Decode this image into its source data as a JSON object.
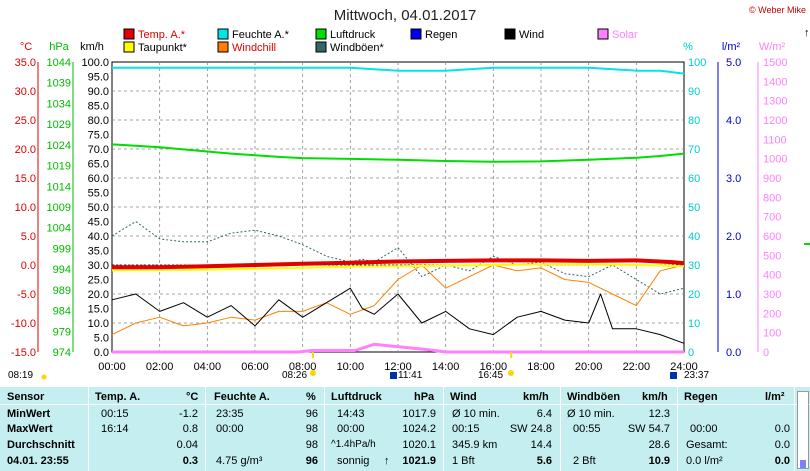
{
  "header": {
    "title": "Mittwoch, 04.01.2017",
    "credit": "© Weber Mike"
  },
  "legend": [
    {
      "label": "Temp. A.*",
      "color": "#e00000"
    },
    {
      "label": "Feuchte A.*",
      "color": "#00e6e6"
    },
    {
      "label": "Luftdruck",
      "color": "#00dd00"
    },
    {
      "label": "Regen",
      "color": "#0000ee"
    },
    {
      "label": "Wind",
      "color": "#000000"
    },
    {
      "label": "Solar",
      "color": "#ff80ff"
    },
    {
      "label": "Taupunkt*",
      "color": "#ffff00"
    },
    {
      "label": "Windchill",
      "color": "#ff8000"
    },
    {
      "label": "Windböen*",
      "color": "#336666"
    }
  ],
  "chart_data": {
    "type": "line",
    "x_ticks": [
      "00:00",
      "02:00",
      "04:00",
      "06:00",
      "08:00",
      "10:00",
      "12:00",
      "14:00",
      "16:00",
      "18:00",
      "20:00",
      "22:00",
      "24:00"
    ],
    "axes": {
      "temp": {
        "unit": "°C",
        "ticks": [
          "35.0",
          "30.0",
          "25.0",
          "20.0",
          "15.0",
          "10.0",
          "5.0",
          "0.0",
          "-5.0",
          "-10.0",
          "-15.0"
        ],
        "color": "#e00000"
      },
      "pressure": {
        "unit": "hPa",
        "ticks": [
          "1044",
          "1039",
          "1034",
          "1029",
          "1024",
          "1019",
          "1014",
          "1009",
          "1004",
          "999",
          "994",
          "989",
          "984",
          "979",
          "974"
        ],
        "color": "#00bb00"
      },
      "wind": {
        "unit": "km/h",
        "ticks": [
          "100.0",
          "95.0",
          "90.0",
          "85.0",
          "80.0",
          "75.0",
          "70.0",
          "65.0",
          "60.0",
          "55.0",
          "50.0",
          "45.0",
          "40.0",
          "35.0",
          "30.0",
          "25.0",
          "20.0",
          "15.0",
          "10.0",
          "5.0",
          "0.0"
        ],
        "color": "#000000"
      },
      "humidity": {
        "unit": "%",
        "ticks": [
          "100",
          "90",
          "80",
          "70",
          "60",
          "50",
          "40",
          "30",
          "20",
          "10",
          "0"
        ],
        "color": "#00cccc"
      },
      "rain": {
        "unit": "l/m²",
        "ticks": [
          "5.0",
          "4.0",
          "3.0",
          "2.0",
          "1.0",
          "0.0"
        ],
        "color": "#0000cc"
      },
      "solar": {
        "unit": "W/m²",
        "ticks": [
          "1500",
          "1400",
          "1300",
          "1200",
          "1100",
          "1000",
          "900",
          "800",
          "700",
          "600",
          "500",
          "400",
          "300",
          "200",
          "100",
          "0"
        ],
        "color": "#ff80ff"
      }
    },
    "series": [
      {
        "name": "Temp. A.*",
        "axis": "temp",
        "x": [
          0,
          2,
          4,
          6,
          8,
          10,
          12,
          14,
          16,
          18,
          20,
          22,
          23.5,
          24
        ],
        "y": [
          -0.4,
          -0.4,
          -0.2,
          0.0,
          0.2,
          0.4,
          0.6,
          0.7,
          0.8,
          0.8,
          0.7,
          0.8,
          0.5,
          0.3
        ]
      },
      {
        "name": "Feuchte A.*",
        "axis": "humidity",
        "x": [
          0,
          4,
          8,
          10,
          12,
          14,
          16,
          18,
          20,
          22,
          23,
          24
        ],
        "y": [
          98,
          98,
          98,
          98,
          97,
          97,
          98,
          98,
          98,
          97,
          97,
          96
        ]
      },
      {
        "name": "Luftdruck",
        "axis": "pressure",
        "x": [
          0,
          1,
          2,
          3,
          4,
          5,
          6,
          7,
          8,
          10,
          12,
          14,
          16,
          18,
          20,
          22,
          23,
          24
        ],
        "y": [
          1024.1,
          1023.8,
          1023.4,
          1022.9,
          1022.4,
          1021.9,
          1021.5,
          1021.1,
          1020.8,
          1020.6,
          1020.4,
          1020.1,
          1019.9,
          1020.0,
          1020.4,
          1020.9,
          1021.3,
          1021.9
        ]
      },
      {
        "name": "Taupunkt*",
        "axis": "temp",
        "x": [
          0,
          4,
          8,
          10,
          12,
          14,
          16,
          18,
          20,
          22,
          24
        ],
        "y": [
          -0.9,
          -0.8,
          -0.5,
          -0.3,
          -0.2,
          -0.1,
          0.0,
          0.1,
          0.1,
          0.0,
          -0.2
        ]
      },
      {
        "name": "Wind",
        "axis": "wind",
        "x": [
          0,
          1,
          2,
          3,
          4,
          5,
          6,
          7,
          8,
          9,
          10,
          10.5,
          11,
          12,
          13,
          14,
          15,
          16,
          17,
          18,
          19,
          20,
          20.5,
          21,
          22,
          23,
          24
        ],
        "y": [
          18,
          20,
          14,
          17,
          12,
          16,
          9,
          18,
          12,
          17,
          22,
          15,
          13,
          20,
          10,
          14,
          8,
          6,
          12,
          14,
          11,
          10,
          20,
          8,
          8,
          6,
          3
        ]
      },
      {
        "name": "Windchill",
        "axis": "wind",
        "x": [
          0,
          1,
          2,
          3,
          4,
          5,
          6,
          7,
          8,
          9,
          10,
          11,
          12,
          13,
          14,
          15,
          16,
          17,
          18,
          19,
          20,
          21,
          22,
          23,
          24
        ],
        "y": [
          6,
          10,
          12,
          9,
          10,
          12,
          11,
          14,
          14,
          17,
          13,
          16,
          25,
          30,
          22,
          26,
          30,
          28,
          29,
          25,
          24,
          20,
          16,
          28,
          30
        ]
      },
      {
        "name": "Windböen*",
        "axis": "wind",
        "x": [
          0,
          1,
          2,
          3,
          4,
          5,
          6,
          7,
          8,
          9,
          10,
          10.5,
          11,
          12,
          13,
          14,
          15,
          16,
          17,
          18,
          19,
          20,
          21,
          22,
          23,
          24
        ],
        "y": [
          40,
          45,
          39,
          38,
          38,
          41,
          42,
          40,
          37,
          33,
          31,
          32,
          31,
          36,
          26,
          30,
          28,
          33,
          30,
          31,
          27,
          26,
          30,
          25,
          20,
          22
        ]
      },
      {
        "name": "Solar",
        "axis": "solar",
        "x": [
          0,
          7.8,
          8.4,
          10.2,
          11,
          11.8,
          12.6,
          13.4,
          14,
          24
        ],
        "y": [
          0,
          0,
          8,
          8,
          40,
          30,
          20,
          10,
          0,
          0
        ]
      }
    ],
    "markers": [
      "08:19",
      "08:26",
      "11:41",
      "16:45",
      "23:37"
    ]
  },
  "table": {
    "headers": {
      "sensor": "Sensor",
      "temp": "Temp. A.",
      "temp_unit": "°C",
      "hum": "Feuchte A.",
      "hum_unit": "%",
      "press": "Luftdruck",
      "press_unit": "hPa",
      "wind": "Wind",
      "wind_unit": "km/h",
      "gust": "Windböen",
      "gust_unit": "km/h",
      "rain": "Regen",
      "rain_unit": "l/m²"
    },
    "rows": {
      "min": {
        "label": "MinWert",
        "temp_time": "00:15",
        "temp": "-1.2",
        "hum_time": "23:35",
        "hum": "96",
        "press_time": "14:43",
        "press": "1017.9",
        "wind_desc": "Ø 10 min.",
        "wind": "6.4",
        "gust_desc": "Ø 10 min.",
        "gust": "12.3"
      },
      "max": {
        "label": "MaxWert",
        "temp_time": "16:14",
        "temp": "0.8",
        "hum_time": "00:00",
        "hum": "98",
        "press_time": "00:00",
        "press": "1024.2",
        "wind_time": "00:15",
        "wind_dir": "SW 24.8",
        "gust_time": "00:55",
        "gust_dir": "SW 54.7",
        "rain_time": "00:00",
        "rain": "0.0"
      },
      "avg": {
        "label": "Durchschnitt",
        "temp": "0.04",
        "hum": "98",
        "press_trend": "^1.4hPa/h",
        "press": "1020.1",
        "wind_dir": "345.9 km",
        "wind": "14.4",
        "gust": "28.6",
        "rain_label": "Gesamt:",
        "rain": "0.0"
      },
      "now": {
        "label": "04.01. 23:55",
        "temp": "0.3",
        "hum_extra": "4.75 g/m³",
        "hum": "96",
        "press_text": "sonnig",
        "press": "1021.9",
        "wind_bft": "1 Bft",
        "wind": "5.6",
        "gust_bft": "2 Bft",
        "gust": "10.9",
        "rain_now": "0.0 l/m²",
        "rain": "0.0"
      }
    }
  }
}
